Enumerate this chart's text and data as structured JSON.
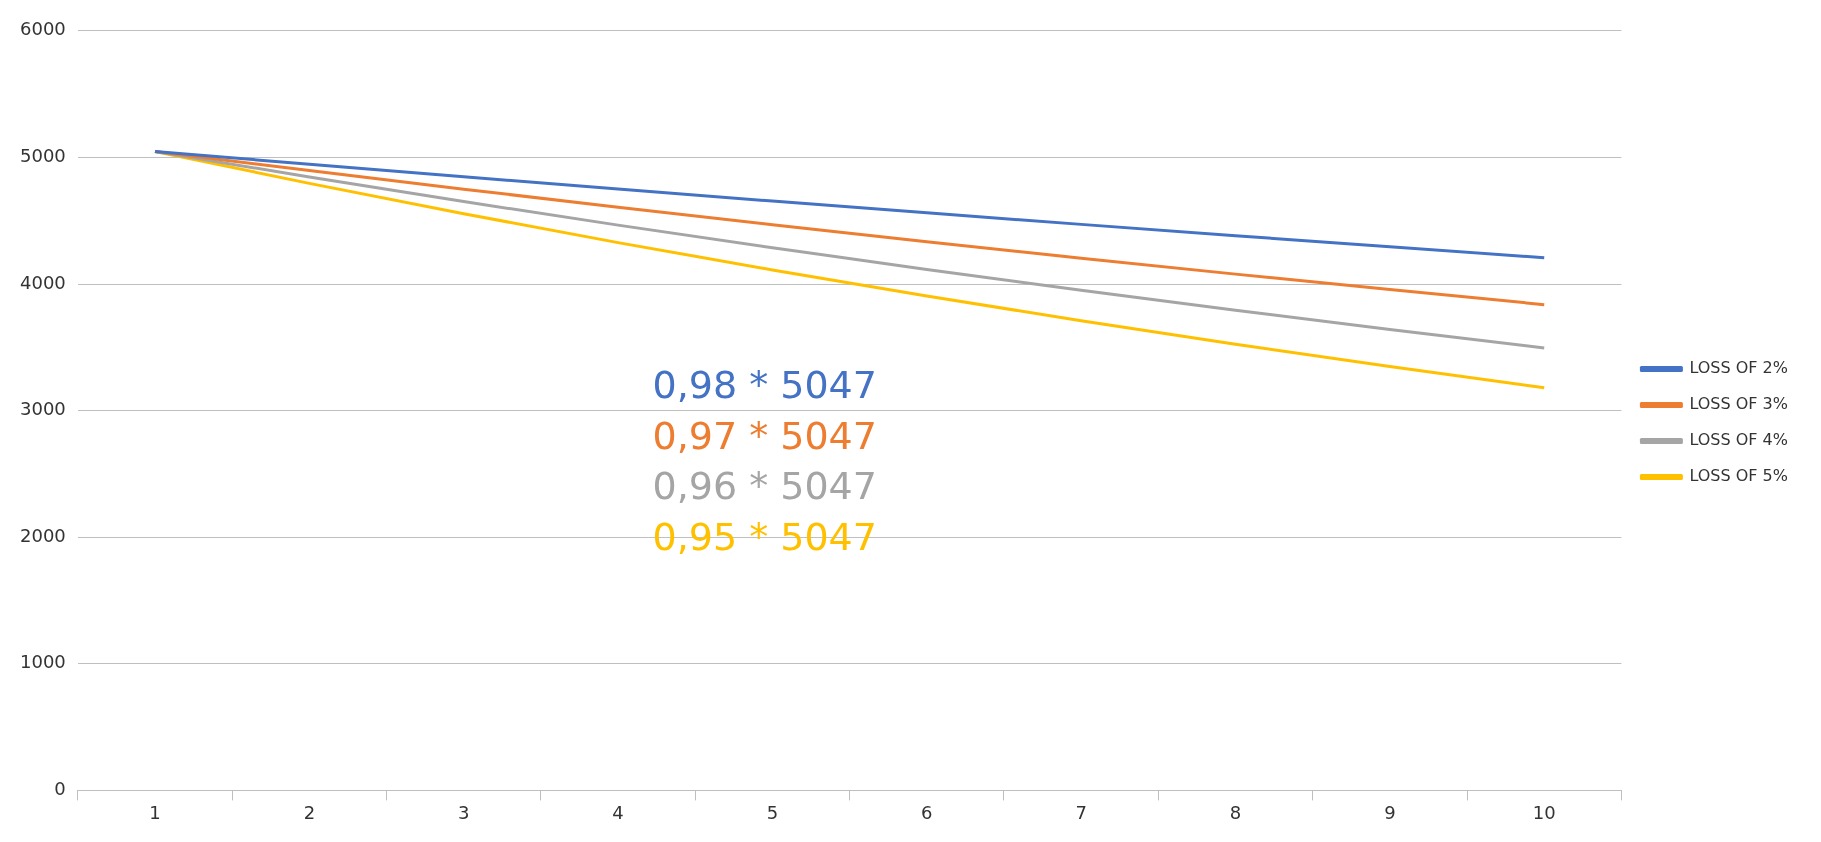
{
  "chart_data": {
    "type": "line",
    "categories": [
      "1",
      "2",
      "3",
      "4",
      "5",
      "6",
      "7",
      "8",
      "9",
      "10"
    ],
    "series": [
      {
        "name": "LOSS OF 2%",
        "color": "#4472c4",
        "values": [
          5047,
          4946,
          4847,
          4750,
          4655,
          4562,
          4471,
          4381,
          4294,
          4208
        ]
      },
      {
        "name": "LOSS OF 3%",
        "color": "#ed7d31",
        "values": [
          5047,
          4896,
          4749,
          4606,
          4468,
          4334,
          4204,
          4078,
          3956,
          3837
        ]
      },
      {
        "name": "LOSS OF 4%",
        "color": "#a5a5a5",
        "values": [
          5047,
          4845,
          4651,
          4465,
          4287,
          4115,
          3951,
          3793,
          3641,
          3495
        ]
      },
      {
        "name": "LOSS OF 5%",
        "color": "#ffc000",
        "values": [
          5047,
          4795,
          4555,
          4327,
          4111,
          3905,
          3710,
          3524,
          3348,
          3181
        ]
      }
    ],
    "annotations": [
      "0,98 * 5047",
      "0,97 * 5047",
      "0,96 * 5047",
      "0,95 * 5047"
    ],
    "ylim": [
      0,
      6000
    ],
    "yticks": [
      0,
      1000,
      2000,
      3000,
      4000,
      5000,
      6000
    ],
    "grid": "y",
    "legend": "right",
    "marker": "none",
    "line_style": "solid"
  }
}
